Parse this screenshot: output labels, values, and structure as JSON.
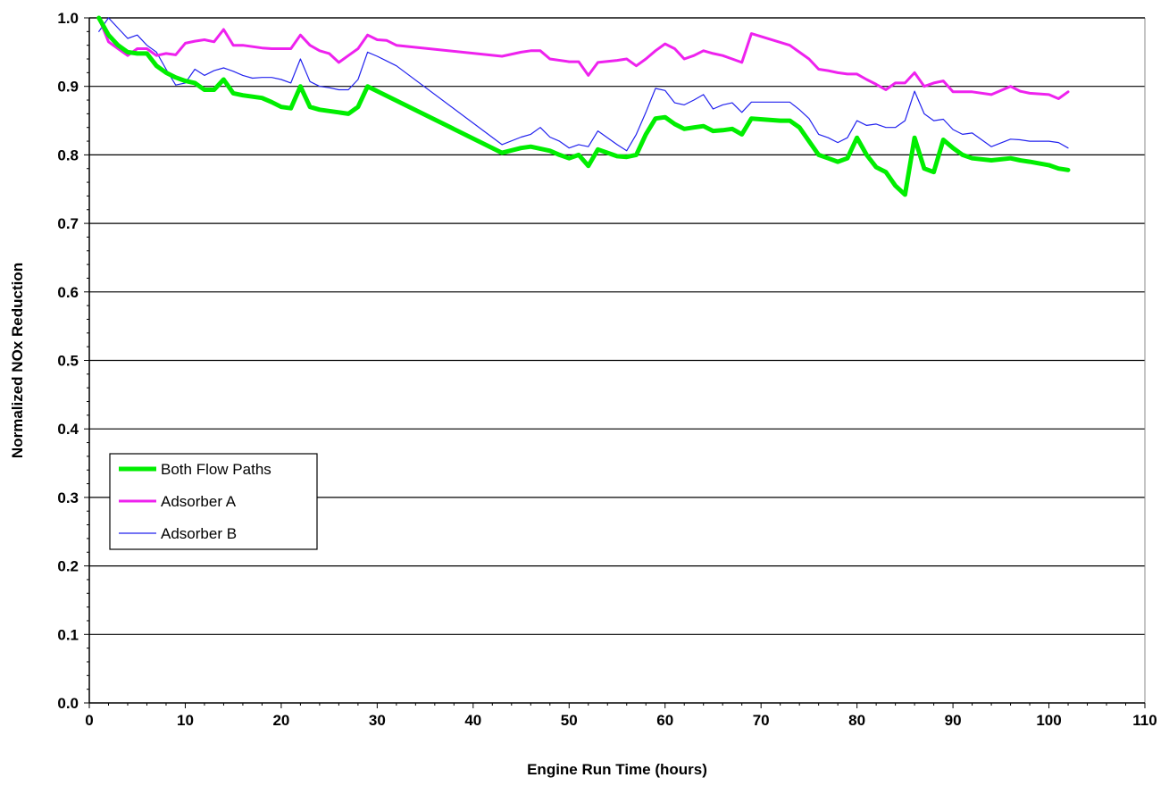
{
  "chart_data": {
    "type": "line",
    "title": "",
    "xlabel": "Engine Run Time (hours)",
    "ylabel": "Normalized NOx Reduction",
    "xlim": [
      0,
      110
    ],
    "ylim": [
      0.0,
      1.0
    ],
    "x_ticks": [
      0,
      10,
      20,
      30,
      40,
      50,
      60,
      70,
      80,
      90,
      100,
      110
    ],
    "y_ticks": [
      0.0,
      0.1,
      0.2,
      0.3,
      0.4,
      0.5,
      0.6,
      0.7,
      0.8,
      0.9,
      1.0
    ],
    "x_tick_labels": [
      "0",
      "10",
      "20",
      "30",
      "40",
      "50",
      "60",
      "70",
      "80",
      "90",
      "100",
      "110"
    ],
    "y_tick_labels": [
      "0.0",
      "0.1",
      "0.2",
      "0.3",
      "0.4",
      "0.5",
      "0.6",
      "0.7",
      "0.8",
      "0.9",
      "1.0"
    ],
    "grid": "horizontal",
    "legend_position": "lower-left",
    "series": [
      {
        "name": "Both Flow Paths",
        "color": "#00ee00",
        "x": [
          1,
          2,
          3,
          4,
          5,
          6,
          7,
          8,
          9,
          10,
          11,
          12,
          13,
          14,
          15,
          16,
          17,
          18,
          19,
          20,
          21,
          22,
          23,
          24,
          25,
          26,
          27,
          28,
          29,
          43,
          45,
          46,
          48,
          49,
          50,
          51,
          52,
          53,
          55,
          56,
          57,
          58,
          59,
          60,
          61,
          62,
          63,
          64,
          65,
          66,
          67,
          68,
          69,
          72,
          73,
          74,
          75,
          76,
          77,
          78,
          79,
          80,
          81,
          82,
          83,
          84,
          85,
          86,
          87,
          88,
          89,
          90,
          91,
          92,
          94,
          96,
          97,
          98,
          100,
          101,
          102
        ],
        "y": [
          1.0,
          0.975,
          0.96,
          0.95,
          0.948,
          0.948,
          0.93,
          0.92,
          0.913,
          0.908,
          0.905,
          0.895,
          0.895,
          0.91,
          0.89,
          0.887,
          0.885,
          0.883,
          0.877,
          0.87,
          0.868,
          0.9,
          0.87,
          0.866,
          0.864,
          0.862,
          0.86,
          0.87,
          0.9,
          0.803,
          0.81,
          0.812,
          0.806,
          0.8,
          0.795,
          0.8,
          0.784,
          0.808,
          0.798,
          0.797,
          0.8,
          0.83,
          0.853,
          0.855,
          0.845,
          0.838,
          0.84,
          0.842,
          0.835,
          0.836,
          0.838,
          0.83,
          0.853,
          0.85,
          0.85,
          0.84,
          0.82,
          0.8,
          0.795,
          0.79,
          0.795,
          0.825,
          0.8,
          0.782,
          0.775,
          0.755,
          0.742,
          0.825,
          0.78,
          0.775,
          0.822,
          0.81,
          0.8,
          0.795,
          0.792,
          0.795,
          0.792,
          0.79,
          0.785,
          0.78,
          0.778
        ]
      },
      {
        "name": "Adsorber A",
        "color": "#ee22ee",
        "x": [
          1,
          2,
          3,
          4,
          5,
          6,
          7,
          8,
          9,
          10,
          11,
          12,
          13,
          14,
          15,
          16,
          17,
          18,
          19,
          20,
          21,
          22,
          23,
          24,
          25,
          26,
          27,
          28,
          29,
          30,
          31,
          32,
          43,
          45,
          46,
          47,
          48,
          50,
          51,
          52,
          53,
          55,
          56,
          57,
          58,
          59,
          60,
          61,
          62,
          63,
          64,
          65,
          66,
          67,
          68,
          69,
          73,
          74,
          75,
          76,
          77,
          78,
          79,
          80,
          81,
          82,
          83,
          84,
          85,
          86,
          87,
          88,
          89,
          90,
          91,
          92,
          94,
          96,
          97,
          98,
          100,
          101,
          102
        ],
        "y": [
          1.0,
          0.965,
          0.955,
          0.945,
          0.955,
          0.955,
          0.945,
          0.948,
          0.946,
          0.963,
          0.966,
          0.968,
          0.965,
          0.983,
          0.96,
          0.96,
          0.958,
          0.956,
          0.955,
          0.955,
          0.955,
          0.975,
          0.96,
          0.952,
          0.948,
          0.935,
          0.945,
          0.955,
          0.975,
          0.968,
          0.967,
          0.96,
          0.944,
          0.95,
          0.952,
          0.952,
          0.94,
          0.936,
          0.936,
          0.916,
          0.935,
          0.938,
          0.94,
          0.93,
          0.94,
          0.952,
          0.962,
          0.955,
          0.94,
          0.945,
          0.952,
          0.948,
          0.945,
          0.94,
          0.935,
          0.977,
          0.96,
          0.95,
          0.94,
          0.925,
          0.923,
          0.92,
          0.918,
          0.918,
          0.91,
          0.903,
          0.895,
          0.905,
          0.905,
          0.92,
          0.9,
          0.905,
          0.908,
          0.892,
          0.892,
          0.892,
          0.888,
          0.9,
          0.893,
          0.89,
          0.888,
          0.882,
          0.892
        ]
      },
      {
        "name": "Adsorber B",
        "color": "#2222ee",
        "x": [
          1,
          2,
          3,
          4,
          5,
          6,
          7,
          8,
          9,
          10,
          11,
          12,
          13,
          14,
          15,
          16,
          17,
          18,
          19,
          20,
          21,
          22,
          23,
          24,
          25,
          26,
          27,
          28,
          29,
          30,
          31,
          32,
          43,
          45,
          46,
          47,
          48,
          49,
          50,
          51,
          52,
          53,
          55,
          56,
          57,
          58,
          59,
          60,
          61,
          62,
          63,
          64,
          65,
          66,
          67,
          68,
          69,
          73,
          74,
          75,
          76,
          77,
          78,
          79,
          80,
          81,
          82,
          83,
          84,
          85,
          86,
          87,
          88,
          89,
          90,
          91,
          92,
          94,
          96,
          97,
          98,
          100,
          101,
          102
        ],
        "y": [
          0.98,
          1.0,
          0.985,
          0.97,
          0.975,
          0.96,
          0.95,
          0.925,
          0.902,
          0.905,
          0.925,
          0.916,
          0.923,
          0.927,
          0.922,
          0.916,
          0.912,
          0.913,
          0.913,
          0.91,
          0.905,
          0.94,
          0.907,
          0.9,
          0.898,
          0.895,
          0.895,
          0.91,
          0.95,
          0.944,
          0.937,
          0.93,
          0.815,
          0.826,
          0.83,
          0.84,
          0.826,
          0.82,
          0.81,
          0.815,
          0.812,
          0.835,
          0.815,
          0.806,
          0.83,
          0.862,
          0.897,
          0.894,
          0.876,
          0.873,
          0.88,
          0.888,
          0.867,
          0.873,
          0.876,
          0.862,
          0.877,
          0.877,
          0.866,
          0.853,
          0.83,
          0.825,
          0.818,
          0.825,
          0.85,
          0.843,
          0.845,
          0.84,
          0.84,
          0.85,
          0.893,
          0.86,
          0.85,
          0.852,
          0.837,
          0.83,
          0.832,
          0.812,
          0.823,
          0.822,
          0.82,
          0.82,
          0.818,
          0.81
        ]
      }
    ]
  }
}
